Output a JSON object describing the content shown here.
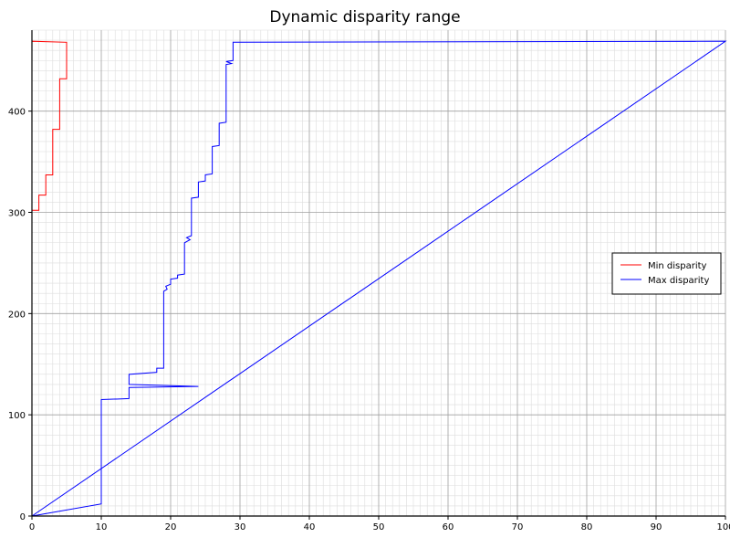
{
  "chart_data": {
    "type": "line",
    "title": "Dynamic disparity range",
    "xlabel": "",
    "ylabel": "",
    "xlim": [
      0,
      100
    ],
    "ylim": [
      0,
      480
    ],
    "grid": {
      "major": true,
      "minor": true
    },
    "xticks": [
      "0",
      "10",
      "20",
      "30",
      "40",
      "50",
      "60",
      "70",
      "80",
      "90",
      "100"
    ],
    "yticks": [
      "0",
      "100",
      "200",
      "300",
      "400"
    ],
    "legend": {
      "placement": "right"
    },
    "series": [
      {
        "name": "Min disparity",
        "color": "#ff0000",
        "points": [
          [
            0,
            0
          ],
          [
            0,
            302
          ],
          [
            1,
            302
          ],
          [
            1,
            317
          ],
          [
            2,
            317
          ],
          [
            2,
            337
          ],
          [
            3,
            337
          ],
          [
            3,
            382
          ],
          [
            4,
            382
          ],
          [
            4,
            432
          ],
          [
            5,
            432
          ],
          [
            5,
            468
          ],
          [
            0,
            469
          ],
          [
            0,
            0
          ]
        ]
      },
      {
        "name": "Max disparity",
        "color": "#0000ff",
        "points": [
          [
            0,
            0
          ],
          [
            10,
            12
          ],
          [
            10,
            115
          ],
          [
            14,
            116
          ],
          [
            14,
            127
          ],
          [
            24,
            128
          ],
          [
            14,
            130
          ],
          [
            14,
            140
          ],
          [
            18,
            142
          ],
          [
            18,
            146
          ],
          [
            19,
            146
          ],
          [
            19,
            222
          ],
          [
            19.5,
            224
          ],
          [
            19.3,
            227
          ],
          [
            20,
            229
          ],
          [
            20,
            234
          ],
          [
            21,
            235
          ],
          [
            21,
            238
          ],
          [
            22,
            239
          ],
          [
            22,
            270
          ],
          [
            22.8,
            273
          ],
          [
            22.3,
            275
          ],
          [
            23,
            277
          ],
          [
            23,
            314
          ],
          [
            24,
            315
          ],
          [
            24,
            330
          ],
          [
            25,
            331
          ],
          [
            25,
            337
          ],
          [
            26,
            338
          ],
          [
            26,
            365
          ],
          [
            27,
            366
          ],
          [
            27,
            388
          ],
          [
            28,
            389
          ],
          [
            28,
            446
          ],
          [
            28.8,
            447
          ],
          [
            28,
            449
          ],
          [
            29,
            450
          ],
          [
            29,
            468
          ],
          [
            100,
            469
          ],
          [
            0,
            0
          ]
        ]
      }
    ]
  }
}
